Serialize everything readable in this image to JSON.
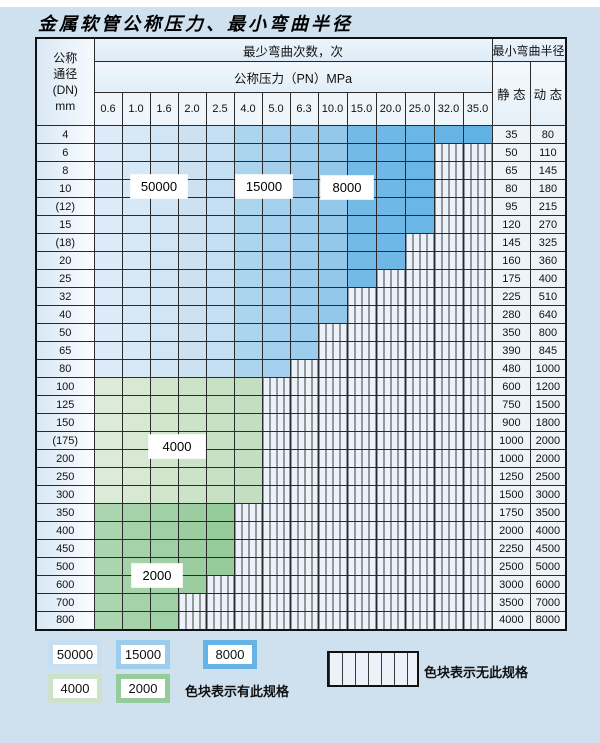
{
  "page": {
    "title": "金属软管公称压力、最小弯曲半径"
  },
  "table": {
    "corner_header": [
      "公称",
      "通径",
      "(DN)",
      "mm"
    ],
    "bend_cycles_header": "最少弯曲次数，次",
    "pressure_header": "公称压力（PN）MPa",
    "radius_header": "最小弯曲半径",
    "static_header": "静 态",
    "dynamic_header": "动 态",
    "pressure_columns": [
      "0.6",
      "1.0",
      "1.6",
      "2.0",
      "2.5",
      "4.0",
      "5.0",
      "6.3",
      "10.0",
      "15.0",
      "20.0",
      "25.0",
      "32.0",
      "35.0"
    ],
    "rows": [
      {
        "dn": "4",
        "colored": 14,
        "zone": "blue",
        "static": "35",
        "dynamic": "80"
      },
      {
        "dn": "6",
        "colored": 12,
        "zone": "blue",
        "static": "50",
        "dynamic": "110"
      },
      {
        "dn": "8",
        "colored": 12,
        "zone": "blue",
        "static": "65",
        "dynamic": "145"
      },
      {
        "dn": "10",
        "colored": 12,
        "zone": "blue",
        "static": "80",
        "dynamic": "180"
      },
      {
        "dn": "(12)",
        "colored": 12,
        "zone": "blue",
        "static": "95",
        "dynamic": "215"
      },
      {
        "dn": "15",
        "colored": 12,
        "zone": "blue",
        "static": "120",
        "dynamic": "270"
      },
      {
        "dn": "(18)",
        "colored": 11,
        "zone": "blue",
        "static": "145",
        "dynamic": "325"
      },
      {
        "dn": "20",
        "colored": 11,
        "zone": "blue",
        "static": "160",
        "dynamic": "360"
      },
      {
        "dn": "25",
        "colored": 10,
        "zone": "blue",
        "static": "175",
        "dynamic": "400"
      },
      {
        "dn": "32",
        "colored": 9,
        "zone": "blue",
        "static": "225",
        "dynamic": "510"
      },
      {
        "dn": "40",
        "colored": 9,
        "zone": "blue",
        "static": "280",
        "dynamic": "640"
      },
      {
        "dn": "50",
        "colored": 8,
        "zone": "blue",
        "static": "350",
        "dynamic": "800"
      },
      {
        "dn": "65",
        "colored": 8,
        "zone": "blue",
        "static": "390",
        "dynamic": "845"
      },
      {
        "dn": "80",
        "colored": 7,
        "zone": "blue",
        "static": "480",
        "dynamic": "1000"
      },
      {
        "dn": "100",
        "colored": 6,
        "zone": "green_light",
        "static": "600",
        "dynamic": "1200"
      },
      {
        "dn": "125",
        "colored": 6,
        "zone": "green_light",
        "static": "750",
        "dynamic": "1500"
      },
      {
        "dn": "150",
        "colored": 6,
        "zone": "green_light",
        "static": "900",
        "dynamic": "1800"
      },
      {
        "dn": "(175)",
        "colored": 6,
        "zone": "green_light",
        "static": "1000",
        "dynamic": "2000"
      },
      {
        "dn": "200",
        "colored": 6,
        "zone": "green_light",
        "static": "1000",
        "dynamic": "2000"
      },
      {
        "dn": "250",
        "colored": 6,
        "zone": "green_light",
        "static": "1250",
        "dynamic": "2500"
      },
      {
        "dn": "300",
        "colored": 6,
        "zone": "green_light",
        "static": "1500",
        "dynamic": "3000"
      },
      {
        "dn": "350",
        "colored": 5,
        "zone": "green_dark",
        "static": "1750",
        "dynamic": "3500"
      },
      {
        "dn": "400",
        "colored": 5,
        "zone": "green_dark",
        "static": "2000",
        "dynamic": "4000"
      },
      {
        "dn": "450",
        "colored": 5,
        "zone": "green_dark",
        "static": "2250",
        "dynamic": "4500"
      },
      {
        "dn": "500",
        "colored": 5,
        "zone": "green_dark",
        "static": "2500",
        "dynamic": "5000"
      },
      {
        "dn": "600",
        "colored": 4,
        "zone": "green_dark",
        "static": "3000",
        "dynamic": "6000"
      },
      {
        "dn": "700",
        "colored": 3,
        "zone": "green_dark",
        "static": "3500",
        "dynamic": "7000"
      },
      {
        "dn": "800",
        "colored": 3,
        "zone": "green_dark",
        "static": "4000",
        "dynamic": "8000"
      }
    ]
  },
  "zone_labels": {
    "z50000": "50000",
    "z15000": "15000",
    "z8000": "8000",
    "z4000": "4000",
    "z2000": "2000"
  },
  "legend": {
    "swatches": [
      {
        "label": "50000",
        "color": "#c6dff2"
      },
      {
        "label": "15000",
        "color": "#9dccec"
      },
      {
        "label": "8000",
        "color": "#66b4e5"
      },
      {
        "label": "4000",
        "color": "#cde3c9"
      },
      {
        "label": "2000",
        "color": "#96cb9c"
      }
    ],
    "available_note": "色块表示有此规格",
    "unavailable_note": "色块表示无此规格"
  },
  "colors": {
    "page_bg": "#cfe0ee",
    "grid_line": "#2b2b2b",
    "striped_bg": "#ebf2fa",
    "blue_palette": [
      "#dcebf7",
      "#d7e8f6",
      "#d2e5f4",
      "#cce2f3",
      "#c6dff2",
      "#abd4ef",
      "#a4d0ed",
      "#9dccec",
      "#93c8ea",
      "#73bae7",
      "#6fb8e6",
      "#6ab6e6",
      "#66b4e5",
      "#61b2e4"
    ],
    "green_light_palette": [
      "#dcebd8",
      "#d7e8d3",
      "#d2e6ce",
      "#cde3c9",
      "#c8e1c5",
      "#c3dec0"
    ],
    "green_dark_palette": [
      "#aad5ae",
      "#a5d2a9",
      "#a0d0a5",
      "#9bcda0",
      "#96cb9c"
    ]
  }
}
